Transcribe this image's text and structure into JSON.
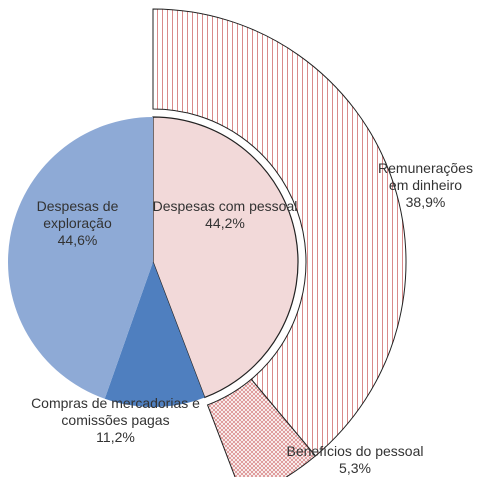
{
  "chart_data": {
    "type": "pie",
    "categories": [
      "Despesas com pessoal",
      "Compras de mercadorias e comissões pagas",
      "Despesas de exploração"
    ],
    "values": [
      44.2,
      11.2,
      44.6
    ],
    "value_labels": [
      "44,2%",
      "11,2%",
      "44,6%"
    ],
    "colors": [
      "#f2d9d9",
      "#4f7fbf",
      "#8eaad6"
    ],
    "breakdown": {
      "categories": [
        "Remunerações em dinheiro",
        "Benefícios do pessoal"
      ],
      "values": [
        38.9,
        5.3
      ],
      "value_labels": [
        "38,9%",
        "5,3%"
      ],
      "color": "#d98a8a"
    }
  }
}
